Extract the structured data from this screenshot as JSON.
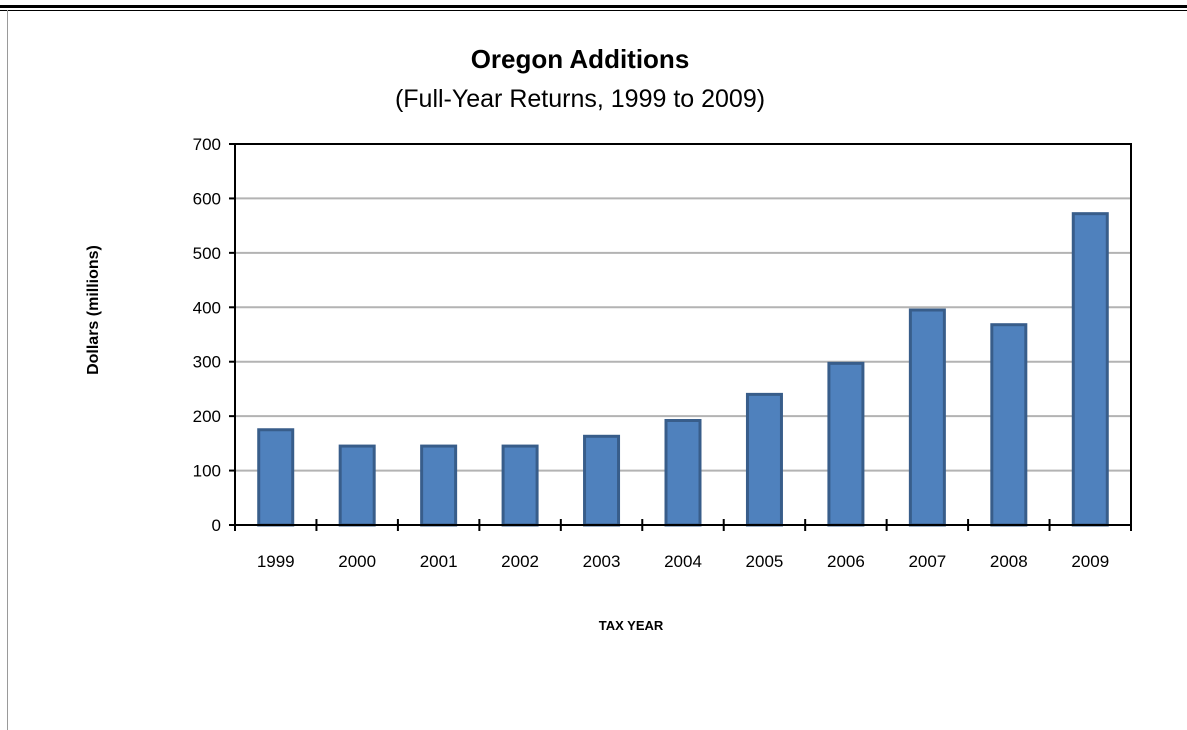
{
  "chart_data": {
    "type": "bar",
    "title": "Oregon Additions",
    "subtitle": "(Full-Year Returns, 1999 to 2009)",
    "xlabel": "TAX YEAR",
    "ylabel": "Dollars (millions)",
    "categories": [
      "1999",
      "2000",
      "2001",
      "2002",
      "2003",
      "2004",
      "2005",
      "2006",
      "2007",
      "2008",
      "2009"
    ],
    "values": [
      175,
      145,
      145,
      145,
      163,
      192,
      240,
      297,
      395,
      368,
      572
    ],
    "ylim": [
      0,
      700
    ],
    "yticks": [
      0,
      100,
      200,
      300,
      400,
      500,
      600,
      700
    ],
    "grid": true,
    "legend": "none",
    "bar_color": "#4F81BD",
    "bar_border_color": "#385D8A"
  }
}
